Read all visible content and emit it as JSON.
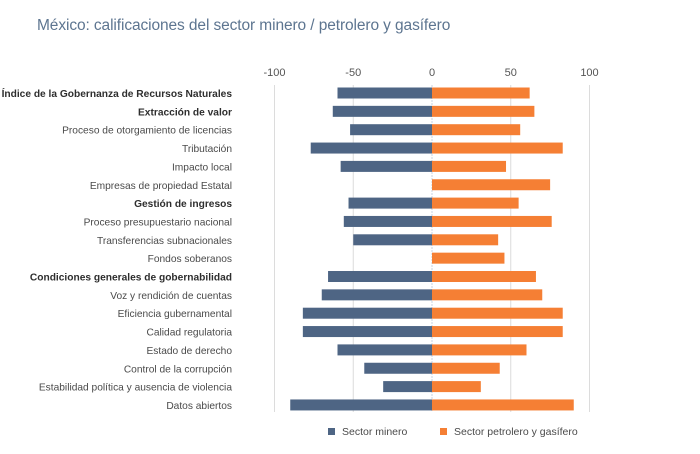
{
  "chart_data": {
    "type": "bar",
    "orientation": "horizontal",
    "title": "México: calificaciones del sector minero / petrolero y gasífero",
    "xlabel": "",
    "ylabel": "",
    "xlim": [
      -100,
      100
    ],
    "xticks": [
      -100,
      -50,
      0,
      50,
      100
    ],
    "tick_labels": [
      "-100",
      "-50",
      "0",
      "50",
      "100"
    ],
    "grid": true,
    "legend_position": "bottom",
    "categories": [
      {
        "label": "Índice de la Gobernanza de Recursos Naturales",
        "bold": true
      },
      {
        "label": "Extracción de valor",
        "bold": true
      },
      {
        "label": "Proceso de otorgamiento de licencias",
        "bold": false
      },
      {
        "label": "Tributación",
        "bold": false
      },
      {
        "label": "Impacto local",
        "bold": false
      },
      {
        "label": "Empresas de propiedad Estatal",
        "bold": false
      },
      {
        "label": "Gestión  de ingresos",
        "bold": true
      },
      {
        "label": "Proceso presupuestario nacional",
        "bold": false
      },
      {
        "label": "Transferencias subnacionales",
        "bold": false
      },
      {
        "label": "Fondos soberanos",
        "bold": false
      },
      {
        "label": "Condiciones generales de gobernabilidad",
        "bold": true
      },
      {
        "label": "Voz y rendición de cuentas",
        "bold": false
      },
      {
        "label": "Eficiencia gubernamental",
        "bold": false
      },
      {
        "label": "Calidad regulatoria",
        "bold": false
      },
      {
        "label": "Estado de derecho",
        "bold": false
      },
      {
        "label": "Control de la corrupción",
        "bold": false
      },
      {
        "label": "Estabilidad política y ausencia de violencia",
        "bold": false
      },
      {
        "label": "Datos abiertos",
        "bold": false
      }
    ],
    "series": [
      {
        "name": "Sector minero",
        "color": "#4e6584",
        "values": [
          -60,
          -63,
          -52,
          -77,
          -58,
          null,
          -53,
          -56,
          -50,
          null,
          -66,
          -70,
          -82,
          -82,
          -60,
          -43,
          -31,
          -90
        ]
      },
      {
        "name": "Sector petrolero y gasífero",
        "color": "#f57f34",
        "values": [
          62,
          65,
          56,
          83,
          47,
          75,
          55,
          76,
          42,
          46,
          66,
          70,
          83,
          83,
          60,
          43,
          31,
          90
        ]
      }
    ]
  }
}
